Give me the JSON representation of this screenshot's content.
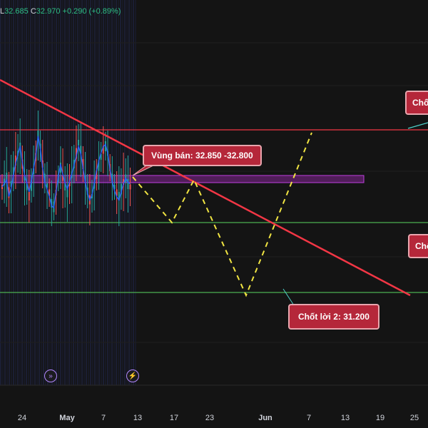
{
  "ohlc": {
    "low_prefix": "L",
    "low_value": "32.685",
    "close_prefix": "C",
    "close_value": "32.970",
    "change": "+0.290 (+0.89%)"
  },
  "callouts": {
    "sell_zone": "Vùng bán: 32.850 -32.800",
    "take_profit_2": "Chốt lời 2: 31.200",
    "take_profit_top": "Chố",
    "take_profit_mid": "Chố"
  },
  "x_axis": {
    "labels": [
      "24",
      "May",
      "7",
      "13",
      "17",
      "23",
      "Jun",
      "7",
      "13",
      "19",
      "25"
    ]
  },
  "events": {
    "split_icon": "split-event-icon",
    "earnings_icon": "lightning-event-icon"
  },
  "colors": {
    "background": "#141414",
    "trendline": "#f23645",
    "resistance": "#f23645",
    "support": "#4caf50",
    "zone": "#9c27b0",
    "projection": "#f0e442",
    "candle_up": "#26a69a",
    "candle_down": "#ef5350",
    "ma": "#2962ff",
    "callout_bg": "#b5273a"
  }
}
